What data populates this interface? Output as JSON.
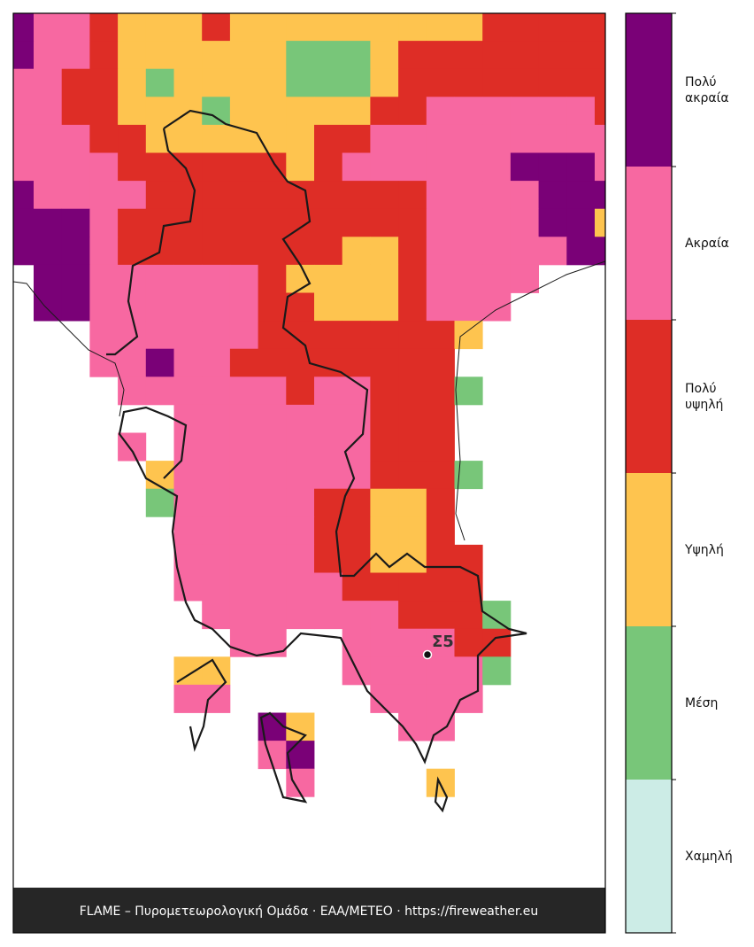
{
  "map": {
    "cells": [
      [
        5,
        4,
        4,
        3,
        2,
        2,
        2,
        3,
        2,
        2,
        2,
        2,
        2,
        2,
        2,
        2,
        2,
        3,
        3,
        3,
        3,
        3
      ],
      [
        5,
        4,
        4,
        3,
        2,
        2,
        2,
        2,
        2,
        2,
        1,
        1,
        1,
        2,
        3,
        3,
        3,
        3,
        3,
        3,
        3,
        3
      ],
      [
        4,
        4,
        3,
        3,
        2,
        1,
        2,
        2,
        2,
        2,
        1,
        1,
        1,
        2,
        3,
        3,
        3,
        3,
        3,
        3,
        3,
        3
      ],
      [
        4,
        4,
        3,
        3,
        2,
        2,
        2,
        1,
        2,
        2,
        2,
        2,
        2,
        3,
        3,
        4,
        4,
        4,
        4,
        4,
        4,
        3
      ],
      [
        4,
        4,
        4,
        3,
        3,
        2,
        2,
        2,
        2,
        2,
        2,
        3,
        3,
        4,
        4,
        4,
        4,
        4,
        4,
        4,
        4,
        4
      ],
      [
        4,
        4,
        4,
        4,
        3,
        3,
        3,
        3,
        3,
        3,
        2,
        3,
        4,
        4,
        4,
        4,
        4,
        4,
        5,
        5,
        5,
        4
      ],
      [
        5,
        4,
        4,
        4,
        4,
        3,
        3,
        3,
        3,
        3,
        3,
        3,
        3,
        3,
        3,
        4,
        4,
        4,
        4,
        5,
        5,
        5
      ],
      [
        5,
        5,
        5,
        4,
        3,
        3,
        3,
        3,
        3,
        3,
        3,
        3,
        3,
        3,
        3,
        4,
        4,
        4,
        4,
        5,
        5,
        2
      ],
      [
        5,
        5,
        5,
        4,
        3,
        3,
        3,
        3,
        3,
        3,
        3,
        3,
        2,
        2,
        3,
        4,
        4,
        4,
        4,
        4,
        5,
        5
      ],
      [
        null,
        5,
        5,
        4,
        4,
        4,
        4,
        4,
        4,
        3,
        2,
        2,
        2,
        2,
        3,
        4,
        4,
        4,
        4,
        null,
        null,
        null
      ],
      [
        null,
        5,
        5,
        4,
        4,
        4,
        4,
        4,
        4,
        3,
        3,
        2,
        2,
        2,
        3,
        4,
        4,
        4,
        null,
        null,
        null,
        null
      ],
      [
        null,
        null,
        null,
        4,
        4,
        4,
        4,
        4,
        4,
        3,
        3,
        3,
        3,
        3,
        3,
        3,
        2,
        null,
        null,
        null,
        null,
        null
      ],
      [
        null,
        null,
        null,
        4,
        4,
        5,
        4,
        4,
        3,
        3,
        3,
        3,
        3,
        3,
        3,
        3,
        null,
        null,
        null,
        null,
        null,
        null
      ],
      [
        null,
        null,
        null,
        null,
        4,
        4,
        4,
        4,
        4,
        4,
        3,
        4,
        4,
        3,
        3,
        3,
        1,
        null,
        null,
        null,
        null,
        null
      ],
      [
        null,
        null,
        null,
        null,
        null,
        null,
        4,
        4,
        4,
        4,
        4,
        4,
        4,
        3,
        3,
        3,
        null,
        null,
        null,
        null,
        null,
        null
      ],
      [
        null,
        null,
        null,
        null,
        4,
        null,
        4,
        4,
        4,
        4,
        4,
        4,
        4,
        3,
        3,
        3,
        null,
        null,
        null,
        null,
        null,
        null
      ],
      [
        null,
        null,
        null,
        null,
        null,
        2,
        4,
        4,
        4,
        4,
        4,
        4,
        4,
        3,
        3,
        3,
        1,
        null,
        null,
        null,
        null,
        null
      ],
      [
        null,
        null,
        null,
        null,
        null,
        1,
        4,
        4,
        4,
        4,
        4,
        3,
        3,
        2,
        2,
        3,
        null,
        null,
        null,
        null,
        null,
        null
      ],
      [
        null,
        null,
        null,
        null,
        null,
        null,
        4,
        4,
        4,
        4,
        4,
        3,
        3,
        2,
        2,
        3,
        null,
        null,
        null,
        null,
        null,
        null
      ],
      [
        null,
        null,
        null,
        null,
        null,
        null,
        4,
        4,
        4,
        4,
        4,
        3,
        3,
        2,
        2,
        3,
        3,
        null,
        null,
        null,
        null,
        null
      ],
      [
        null,
        null,
        null,
        null,
        null,
        null,
        4,
        4,
        4,
        4,
        4,
        4,
        3,
        3,
        3,
        3,
        3,
        null,
        null,
        null,
        null,
        null
      ],
      [
        null,
        null,
        null,
        null,
        null,
        null,
        null,
        4,
        4,
        4,
        4,
        4,
        4,
        4,
        3,
        3,
        3,
        1,
        null,
        null,
        null,
        null
      ],
      [
        null,
        null,
        null,
        null,
        null,
        null,
        null,
        null,
        4,
        4,
        null,
        null,
        4,
        4,
        4,
        4,
        3,
        3,
        null,
        null,
        null,
        null
      ],
      [
        null,
        null,
        null,
        null,
        null,
        null,
        2,
        2,
        null,
        null,
        null,
        null,
        4,
        4,
        4,
        4,
        4,
        1,
        null,
        null,
        null,
        null
      ],
      [
        null,
        null,
        null,
        null,
        null,
        null,
        4,
        4,
        null,
        null,
        null,
        null,
        null,
        4,
        4,
        4,
        4,
        null,
        null,
        null,
        null,
        null
      ],
      [
        null,
        null,
        null,
        null,
        null,
        null,
        null,
        null,
        null,
        5,
        2,
        null,
        null,
        null,
        4,
        4,
        null,
        null,
        null,
        null,
        null,
        null
      ],
      [
        null,
        null,
        null,
        null,
        null,
        null,
        null,
        null,
        null,
        4,
        5,
        null,
        null,
        null,
        null,
        null,
        null,
        null,
        null,
        null,
        null,
        null
      ],
      [
        null,
        null,
        null,
        null,
        null,
        null,
        null,
        null,
        null,
        null,
        4,
        null,
        null,
        null,
        null,
        2,
        null,
        null,
        null,
        null,
        null,
        null
      ]
    ],
    "station": "Σ5",
    "footer": "FLAME – Πυρομετεωρολογική Ομάδα · ΕΑΑ/METEO · https://fireweather.eu"
  },
  "legend": {
    "labels": [
      "Χαμηλή",
      "Μέση",
      "Υψηλή",
      "Πολύ υψηλή",
      "Ακραία",
      "Πολύ ακραία"
    ],
    "colors": [
      "#ccece6",
      "#78c679",
      "#fec44f",
      "#de2d26",
      "#f768a1",
      "#7a0177"
    ]
  }
}
